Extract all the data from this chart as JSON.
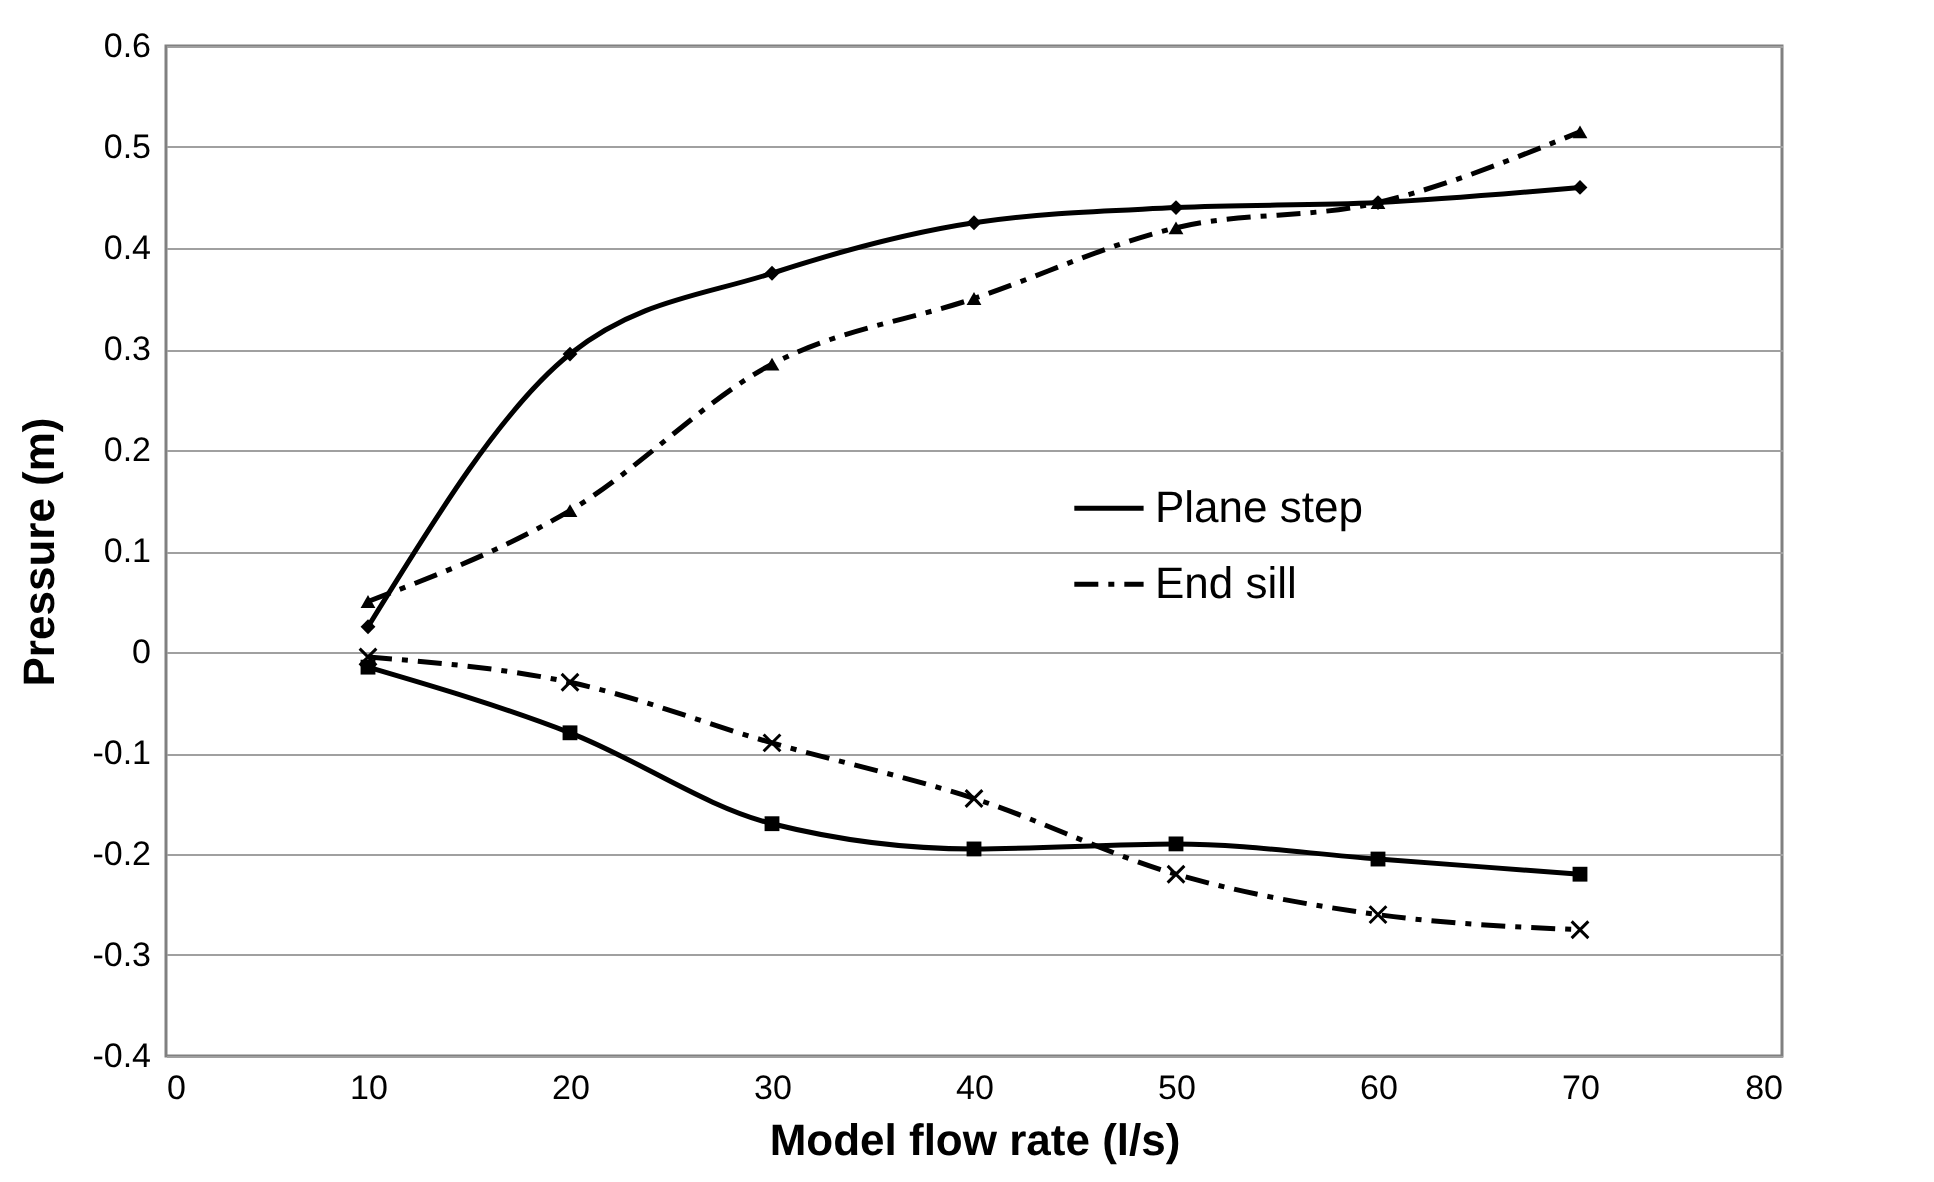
{
  "chart_data": {
    "type": "line",
    "xlabel": "Model flow rate (l/s)",
    "ylabel": "Pressure (m)",
    "x": [
      10,
      20,
      30,
      40,
      50,
      60,
      70
    ],
    "series": [
      {
        "name": "Plane step",
        "color": "#000000",
        "marker": "diamond",
        "line_style": "solid",
        "values": [
          0.025,
          0.295,
          0.375,
          0.425,
          0.44,
          0.445,
          0.46
        ]
      },
      {
        "name": "End sill",
        "color": "#000000",
        "marker": "triangle",
        "line_style": "dashed",
        "values": [
          0.05,
          0.14,
          0.285,
          0.35,
          0.42,
          0.445,
          0.515
        ]
      },
      {
        "color": "#000000",
        "marker": "square",
        "line_style": "solid",
        "values": [
          -0.015,
          -0.08,
          -0.17,
          -0.195,
          -0.19,
          -0.205,
          -0.22
        ]
      },
      {
        "color": "#000000",
        "marker": "cross",
        "line_style": "dashed",
        "values": [
          -0.005,
          -0.03,
          -0.09,
          -0.145,
          -0.22,
          -0.26,
          -0.275
        ]
      }
    ],
    "xlim": [
      0,
      80
    ],
    "xticks": [
      0,
      10,
      20,
      30,
      40,
      50,
      60,
      70,
      80
    ],
    "ylim": [
      -0.4,
      0.6
    ],
    "yticks": [
      -0.4,
      -0.3,
      -0.2,
      -0.1,
      0,
      0.1,
      0.2,
      0.3,
      0.4,
      0.5,
      0.6
    ],
    "grid": "y",
    "legend": "right"
  }
}
